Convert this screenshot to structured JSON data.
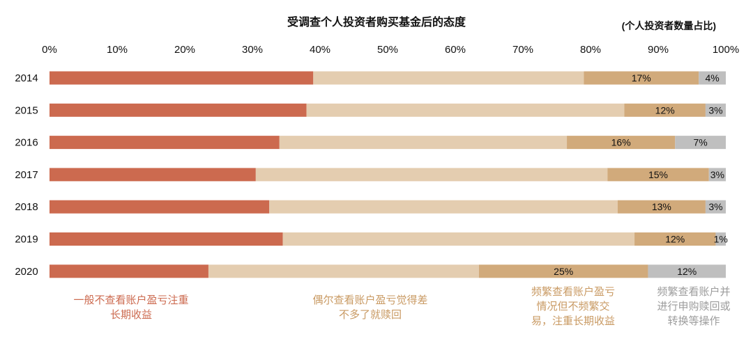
{
  "chart_data": {
    "type": "bar",
    "orientation": "horizontal",
    "stacked": true,
    "title": "受调查个人投资者购买基金后的态度",
    "unit_note": "(个人投资者数量占比)",
    "x_ticks": [
      "0%",
      "10%",
      "20%",
      "30%",
      "40%",
      "50%",
      "60%",
      "70%",
      "80%",
      "90%",
      "100%"
    ],
    "xlim": [
      0,
      100
    ],
    "categories": [
      "2014",
      "2015",
      "2016",
      "2017",
      "2018",
      "2019",
      "2020"
    ],
    "series": [
      {
        "name": "一般不查看账户盈亏注重长期收益",
        "color": "#cc6a4f",
        "values": [
          39,
          38,
          34,
          30.5,
          32.5,
          34.5,
          23.5
        ],
        "labels": [
          "",
          "",
          "",
          "",
          "",
          "",
          ""
        ]
      },
      {
        "name": "偶尔查看账户盈亏觉得差不多了就赎回",
        "color": "#e4cdb0",
        "values": [
          40,
          47,
          42.5,
          52,
          51.5,
          52,
          40
        ],
        "labels": [
          "",
          "",
          "",
          "",
          "",
          "",
          ""
        ]
      },
      {
        "name": "频繁查看账户盈亏情况但不频繁交易，注重长期收益",
        "color": "#d1aa7b",
        "values": [
          17,
          12,
          16,
          15,
          13,
          12,
          25
        ],
        "labels": [
          "17%",
          "12%",
          "16%",
          "15%",
          "13%",
          "12%",
          "25%"
        ]
      },
      {
        "name": "频繁查看账户并进行申购赎回或转换等操作",
        "color": "#bfbfbf",
        "values": [
          4,
          3,
          7,
          3,
          3,
          1,
          12
        ],
        "labels": [
          "4%",
          "3%",
          "7%",
          "3%",
          "3%",
          "1%",
          "12%"
        ]
      }
    ],
    "legend": [
      {
        "text": "一般不查看账户盈亏注重\n长期收益",
        "color": "#cc6a4f"
      },
      {
        "text": "偶尔查看账户盈亏觉得差\n不多了就赎回",
        "color": "#c99a63"
      },
      {
        "text": "频繁查看账户盈亏\n情况但不频繁交\n易，注重长期收益",
        "color": "#c99a63"
      },
      {
        "text": "频繁查看账户并\n进行申购赎回或\n转换等操作",
        "color": "#9c9c9c"
      }
    ],
    "grid": false
  }
}
